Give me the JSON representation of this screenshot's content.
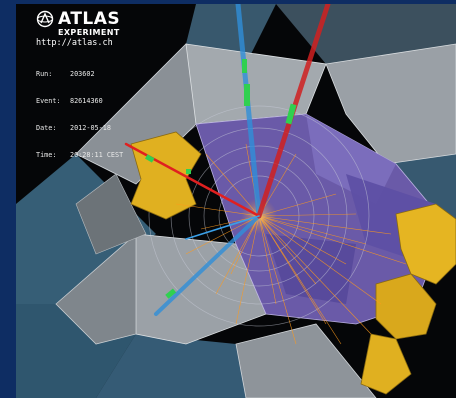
{
  "logo": {
    "title": "ATLAS",
    "subtitle": "EXPERIMENT",
    "url": "http://atlas.ch"
  },
  "event_info": [
    {
      "label": "Run:",
      "value": "203602"
    },
    {
      "label": "Event:",
      "value": "82614360"
    },
    {
      "label": "Date:",
      "value": "2012-05-18"
    },
    {
      "label": "Time:",
      "value": "20:28:11 CEST"
    }
  ],
  "colors": {
    "border": "#0e2d63",
    "background": "#050608",
    "calorimeter_gray": "#9aa0a6",
    "muon_blue": "#5a8fb0",
    "inner_purple": "#6a5aa8",
    "endcap_yellow": "#e0b020",
    "track_orange": "#ff9a1a",
    "muon_track": "#2f8fd8",
    "electron_track": "#e02020",
    "hit_green": "#30d050"
  }
}
